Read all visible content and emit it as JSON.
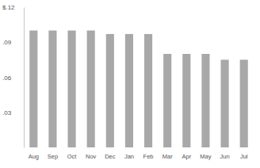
{
  "chart_data": {
    "type": "bar",
    "categories": [
      "Aug",
      "Sep",
      "Oct",
      "Nov",
      "Dec",
      "Jan",
      "Feb",
      "Mar",
      "Apr",
      "May",
      "Jun",
      "Jul"
    ],
    "values": [
      0.1,
      0.1,
      0.1,
      0.1,
      0.097,
      0.097,
      0.097,
      0.08,
      0.08,
      0.08,
      0.075,
      0.075
    ],
    "color": "#a8a8a8",
    "ylim": [
      0,
      0.12
    ],
    "yticks": [
      {
        "value": 0.03,
        "label": ".03"
      },
      {
        "value": 0.06,
        "label": ".06"
      },
      {
        "value": 0.09,
        "label": ".09"
      },
      {
        "value": 0.12,
        "label": "$.12"
      }
    ],
    "grid": false
  }
}
